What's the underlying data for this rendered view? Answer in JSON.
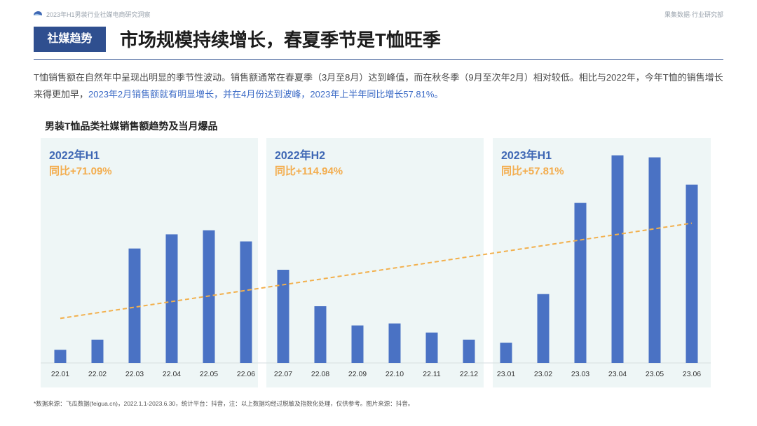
{
  "header": {
    "report_title": "2023年H1男装行业社媒电商研究洞察",
    "brand": "果集数据·行业研究部"
  },
  "section": {
    "tag": "社媒趋势",
    "headline": "市场规模持续增长，春夏季节是T恤旺季"
  },
  "intro": {
    "part1": "T恤销售额在自然年中呈现出明显的季节性波动。销售额通常在春夏季（3月至8月）达到峰值，而在秋冬季（9月至次年2月）相对较低。相比与2022年，今年T恤的销售增长来得更加早，",
    "highlight": "2023年2月销售额就有明显增长，并在4月份达到波峰，2023年上半年同比增长57.81%。"
  },
  "chart_title": "男装T恤品类社媒销售额趋势及当月爆品",
  "colors": {
    "bar": "#4a72c4",
    "trend": "#f2b04d",
    "panel": "#eef6f6",
    "period": "#3e67b4",
    "yoy": "#f3ad4e"
  },
  "chart_data": {
    "type": "bar",
    "title": "男装T恤品类社媒销售额趋势及当月爆品",
    "categories": [
      "22.01",
      "22.02",
      "22.03",
      "22.04",
      "22.05",
      "22.06",
      "22.07",
      "22.08",
      "22.09",
      "22.10",
      "22.11",
      "22.12",
      "23.01",
      "23.02",
      "23.03",
      "23.04",
      "23.05",
      "23.06"
    ],
    "values": [
      6.5,
      11.5,
      56.5,
      63.5,
      65.5,
      60,
      46,
      28,
      18.5,
      19.5,
      15,
      11.5,
      10,
      34,
      79,
      102.5,
      101.5,
      88
    ],
    "ylim": [
      0,
      110
    ],
    "xlabel": "",
    "ylabel": "",
    "trendline": {
      "start": 22,
      "end": 69
    },
    "groups": [
      {
        "period": "2022年H1",
        "yoy": "同比+71.09%",
        "start": 0,
        "count": 6
      },
      {
        "period": "2022年H2",
        "yoy": "同比+114.94%",
        "start": 6,
        "count": 6
      },
      {
        "period": "2023年H1",
        "yoy": "同比+57.81%",
        "start": 12,
        "count": 6
      }
    ]
  },
  "footnote": "*数据来源：飞瓜数据(feigua.cn)，2022.1.1-2023.6.30，统计平台：抖音，注：以上数据均经过脱敏及指数化处理，仅供参考。图片来源：抖音。"
}
